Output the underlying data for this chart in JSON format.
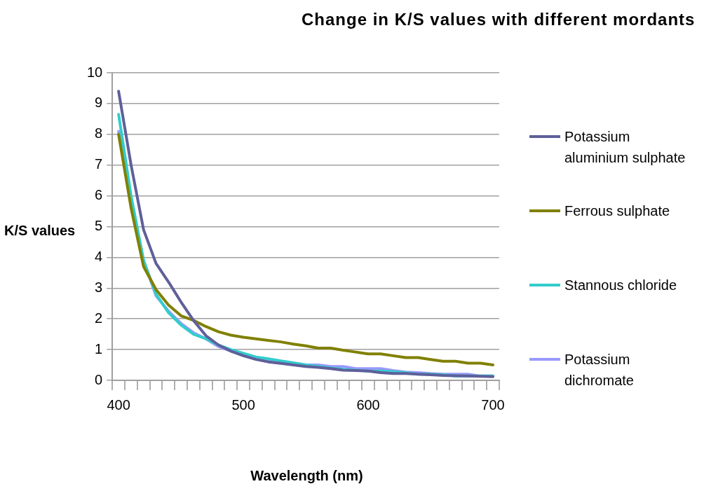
{
  "chart_data": {
    "type": "line",
    "title": "Change in K/S values with different mordants",
    "xlabel": "Wavelength (nm)",
    "ylabel": "K/S values",
    "categories": [
      "400",
      null,
      null,
      null,
      null,
      null,
      null,
      null,
      null,
      null,
      "500",
      null,
      null,
      null,
      null,
      null,
      null,
      null,
      null,
      null,
      "600",
      null,
      null,
      null,
      null,
      null,
      null,
      null,
      null,
      null,
      "700"
    ],
    "ylim": [
      0,
      10
    ],
    "yticks": [
      0,
      1,
      2,
      3,
      4,
      5,
      6,
      7,
      8,
      9,
      10
    ],
    "grid": "y",
    "legend": "right",
    "marker": "none",
    "line_style": "solid",
    "series": [
      {
        "name": "Potassium aluminium sulphate",
        "color": "#5f5f9a",
        "values": [
          9.4,
          7.0,
          4.9,
          3.8,
          3.2,
          2.55,
          1.95,
          1.45,
          1.15,
          0.95,
          0.8,
          0.68,
          0.6,
          0.55,
          0.5,
          0.45,
          0.42,
          0.38,
          0.33,
          0.32,
          0.3,
          0.25,
          0.22,
          0.22,
          0.2,
          0.18,
          0.16,
          0.15,
          0.14,
          0.13,
          0.12
        ]
      },
      {
        "name": "Ferrous sulphate",
        "color": "#808000",
        "values": [
          8.0,
          5.6,
          3.7,
          2.95,
          2.45,
          2.1,
          1.95,
          1.75,
          1.58,
          1.47,
          1.4,
          1.35,
          1.3,
          1.25,
          1.18,
          1.12,
          1.05,
          1.05,
          0.98,
          0.92,
          0.86,
          0.86,
          0.8,
          0.74,
          0.74,
          0.68,
          0.62,
          0.62,
          0.56,
          0.56,
          0.5
        ]
      },
      {
        "name": "Stannous chloride",
        "color": "#33cccc",
        "values": [
          8.65,
          6.0,
          3.9,
          2.8,
          2.2,
          1.8,
          1.5,
          1.35,
          1.15,
          1.0,
          0.88,
          0.76,
          0.7,
          0.63,
          0.57,
          0.5,
          0.45,
          0.4,
          0.36,
          0.33,
          0.3,
          0.3,
          0.28,
          0.25,
          0.2,
          0.2,
          0.18,
          0.14,
          0.14,
          0.14,
          0.14
        ]
      },
      {
        "name": "Potassium dichromate",
        "color": "#9999ff",
        "values": [
          8.1,
          5.9,
          3.9,
          2.75,
          2.25,
          1.85,
          1.55,
          1.35,
          1.1,
          0.95,
          0.85,
          0.75,
          0.68,
          0.62,
          0.56,
          0.5,
          0.5,
          0.45,
          0.45,
          0.38,
          0.38,
          0.38,
          0.32,
          0.27,
          0.25,
          0.22,
          0.2,
          0.2,
          0.2,
          0.14,
          0.14
        ]
      }
    ]
  }
}
